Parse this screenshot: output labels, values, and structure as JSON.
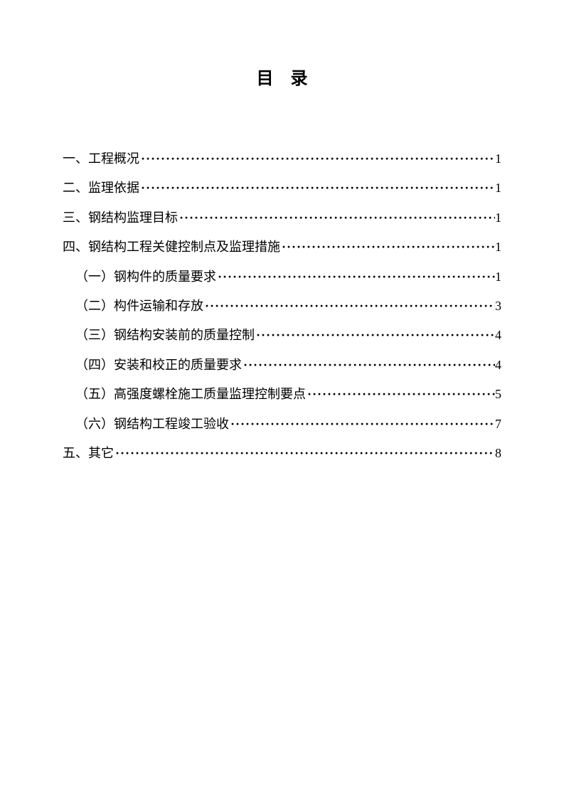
{
  "title": "目录",
  "entries": [
    {
      "level": 1,
      "label": "一、工程概况",
      "page": "1"
    },
    {
      "level": 1,
      "label": "二、监理依据",
      "page": "1"
    },
    {
      "level": 1,
      "label": "三、钢结构监理目标",
      "page": "1"
    },
    {
      "level": 1,
      "label": "四、钢结构工程关健控制点及监理措施",
      "page": "1"
    },
    {
      "level": 2,
      "label": "（一）钢构件的质量要求",
      "page": "1"
    },
    {
      "level": 2,
      "label": "（二）构件运输和存放",
      "page": "3"
    },
    {
      "level": 2,
      "label": "（三）钢结构安装前的质量控制",
      "page": "4"
    },
    {
      "level": 2,
      "label": "（四）安装和校正的质量要求",
      "page": "4"
    },
    {
      "level": 2,
      "label": "（五）高强度螺栓施工质量监理控制要点",
      "page": "5"
    },
    {
      "level": 2,
      "label": "（六）钢结构工程竣工验收",
      "page": "7"
    },
    {
      "level": 1,
      "label": "五、其它",
      "page": "8"
    }
  ]
}
